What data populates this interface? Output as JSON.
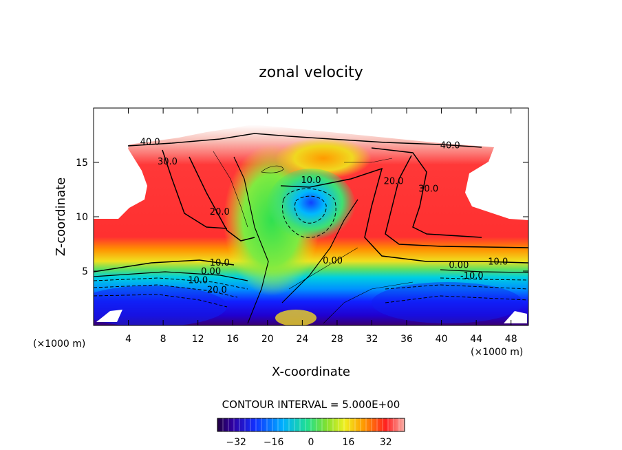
{
  "chart_data": {
    "type": "contour",
    "title": "zonal velocity",
    "xlabel": "X-coordinate",
    "ylabel": "Z-coordinate",
    "x_unit": "(×1000 m)",
    "y_unit": "(×1000 m)",
    "xlim": [
      0,
      50
    ],
    "ylim": [
      0,
      20
    ],
    "x_ticks": [
      4,
      8,
      12,
      16,
      20,
      24,
      28,
      32,
      36,
      40,
      44,
      48
    ],
    "y_ticks": [
      5,
      10,
      15
    ],
    "contour_interval_text": "CONTOUR INTERVAL = 5.000E+00",
    "contour_interval": 5.0,
    "contour_labels": [
      {
        "text": "40.0",
        "x": 6.5,
        "y": 16.6
      },
      {
        "text": "40.0",
        "x": 41.0,
        "y": 16.3
      },
      {
        "text": "30.0",
        "x": 8.5,
        "y": 14.8
      },
      {
        "text": "30.0",
        "x": 38.5,
        "y": 12.3
      },
      {
        "text": "20.0",
        "x": 14.5,
        "y": 10.2
      },
      {
        "text": "20.0",
        "x": 34.5,
        "y": 13.0
      },
      {
        "text": "10.0",
        "x": 25.0,
        "y": 13.1
      },
      {
        "text": "10.0",
        "x": 14.5,
        "y": 5.5
      },
      {
        "text": "10.0",
        "x": 46.5,
        "y": 5.6
      },
      {
        "text": "10.0",
        "x": 12.0,
        "y": 3.9
      },
      {
        "text": "-10.0",
        "x": 43.5,
        "y": 4.3
      },
      {
        "text": "0.00",
        "x": 13.5,
        "y": 4.7
      },
      {
        "text": "0.00",
        "x": 27.5,
        "y": 5.7
      },
      {
        "text": "0.00",
        "x": 42.0,
        "y": 5.3
      },
      {
        "text": "-20.0",
        "x": 14.0,
        "y": 3.0
      }
    ],
    "colorbar": {
      "min": -40,
      "max": 40,
      "ticks": [
        "−32",
        "−16",
        "0",
        "16",
        "32"
      ],
      "tick_values": [
        -32,
        -16,
        0,
        16,
        32
      ]
    },
    "colors": {
      "strong_negative": "#3a0070",
      "negative": "#1030ff",
      "weak_negative": "#00c8ff",
      "zero": "#40e060",
      "weak_positive": "#e8f020",
      "positive": "#ff8000",
      "strong_positive": "#ff2020",
      "max_positive": "#f8b0a8"
    }
  }
}
